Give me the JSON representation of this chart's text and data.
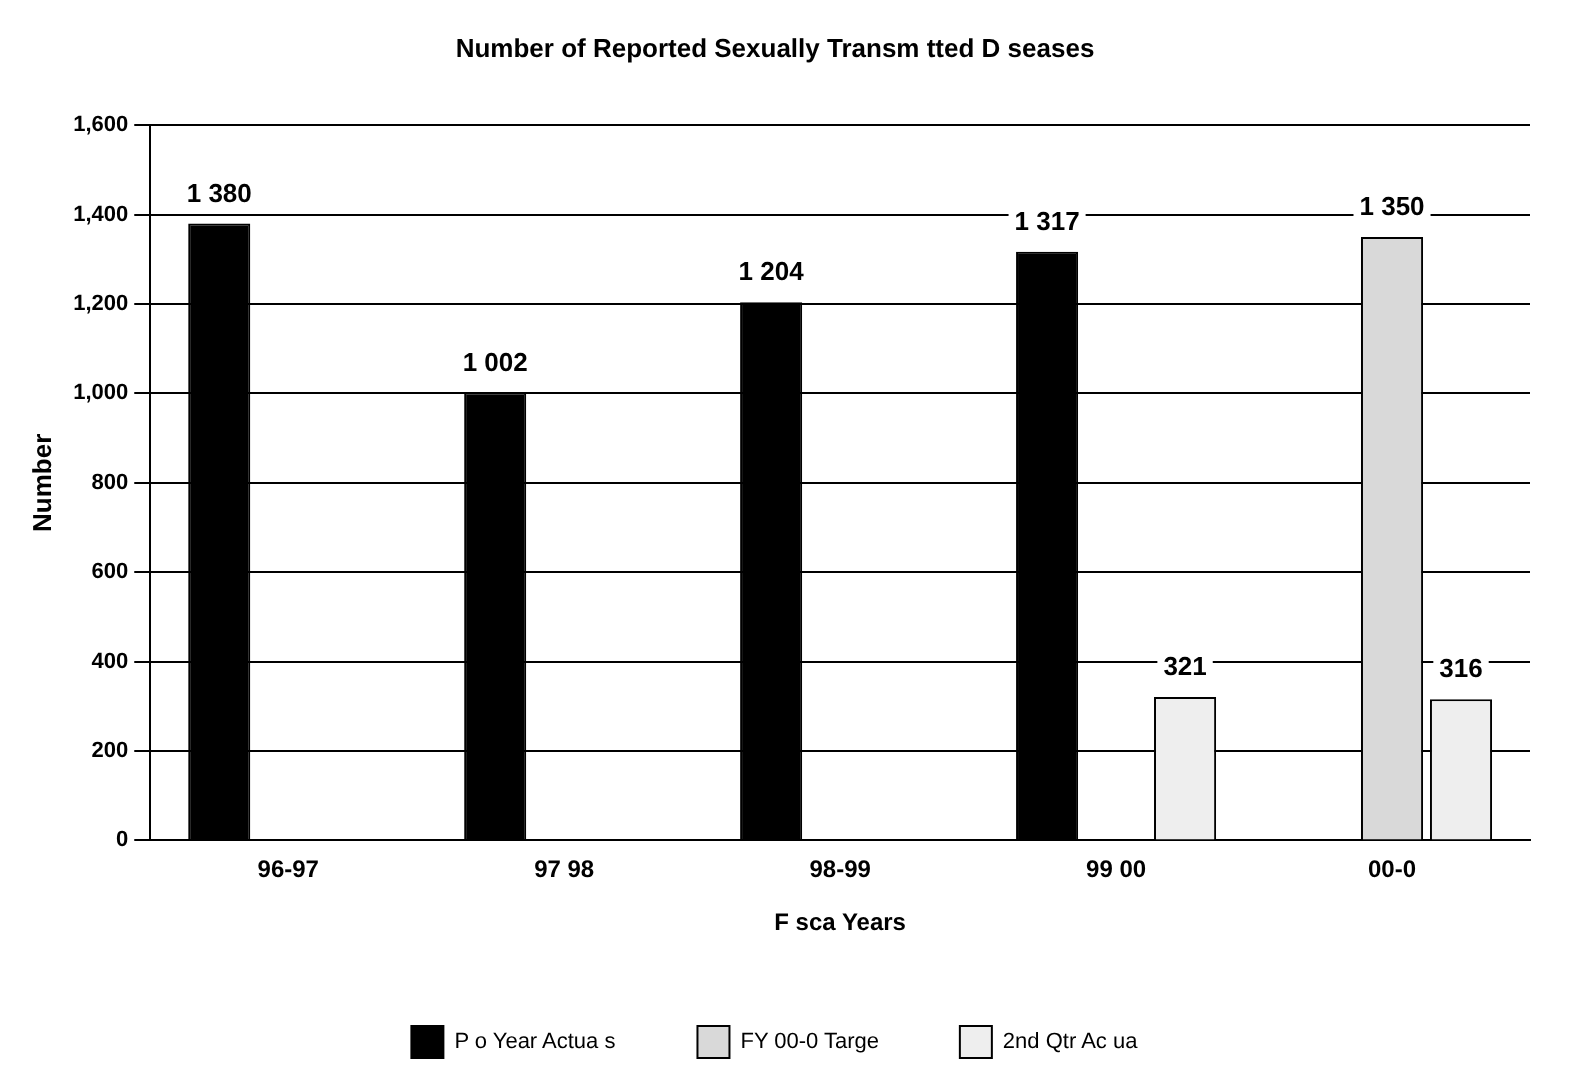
{
  "chart_data": {
    "type": "bar",
    "title": "Number of Reported Sexually Transm tted D seases",
    "xlabel": "F sca Years",
    "ylabel": "Number",
    "categories": [
      "96-97",
      "97 98",
      "98-99",
      "99 00",
      "00-0"
    ],
    "series": [
      {
        "name": "P o Year Actua s",
        "color": "#000000",
        "values": [
          1380,
          1002,
          1204,
          1317,
          null
        ],
        "value_labels": [
          "1 380",
          "1 002",
          "1 204",
          "1 317",
          null
        ]
      },
      {
        "name": "FY 00-0 Targe",
        "color": "#d9d9d9",
        "values": [
          null,
          null,
          null,
          null,
          1350
        ],
        "value_labels": [
          null,
          null,
          null,
          null,
          "1 350"
        ]
      },
      {
        "name": "2nd Qtr Ac ua",
        "color": "#eeeeee",
        "values": [
          null,
          null,
          null,
          321,
          316
        ],
        "value_labels": [
          null,
          null,
          null,
          "321",
          "316"
        ]
      }
    ],
    "ylim": [
      0,
      1600
    ],
    "yticks": [
      0,
      200,
      400,
      600,
      800,
      {
        "value": 1000,
        "label": "1,000"
      },
      {
        "value": 1200,
        "label": "1,200"
      },
      {
        "value": 1400,
        "label": "1,400"
      },
      {
        "value": 1600,
        "label": "1,600"
      }
    ],
    "grid": "y",
    "legend": "bottom"
  }
}
